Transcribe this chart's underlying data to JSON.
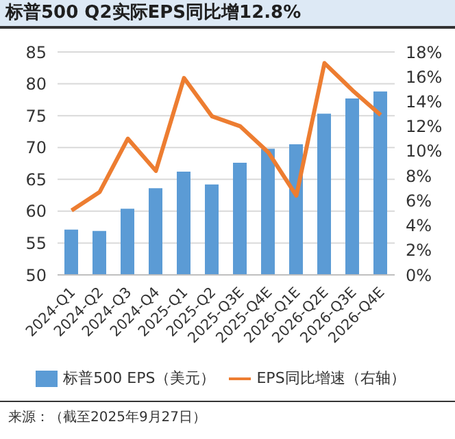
{
  "chart_data": {
    "type": "bar",
    "title": "标普500  Q2实际EPS同比增12.8%",
    "categories": [
      "2024-Q1",
      "2024-Q2",
      "2024-Q3",
      "2024-Q4",
      "2025-Q1",
      "2025-Q2",
      "2025-Q3E",
      "2025-Q4E",
      "2026-Q1E",
      "2026-Q2E",
      "2026-Q3E",
      "2026-Q4E"
    ],
    "series": [
      {
        "name": "标普500 EPS（美元）",
        "color": "#5b9bd5",
        "values": [
          57.1,
          56.9,
          60.4,
          63.6,
          66.2,
          64.2,
          67.6,
          69.8,
          70.5,
          75.3,
          77.7,
          78.8
        ]
      },
      {
        "name": "EPS同比增速（右轴）",
        "type": "line",
        "axis": "y2",
        "color": "#ed7d31",
        "values": [
          5.2,
          6.7,
          11.0,
          8.4,
          15.9,
          12.8,
          12.0,
          9.9,
          6.4,
          17.1,
          14.9,
          12.9
        ]
      }
    ],
    "ylim": [
      50,
      85
    ],
    "yticks": [
      50,
      55,
      60,
      65,
      70,
      75,
      80,
      85
    ],
    "y2lim": [
      0,
      18
    ],
    "y2ticks": [
      {
        "value": 0,
        "label": "0%"
      },
      {
        "value": 2,
        "label": "2%"
      },
      {
        "value": 4,
        "label": "4%"
      },
      {
        "value": 6,
        "label": "6%"
      },
      {
        "value": 8,
        "label": "8%"
      },
      {
        "value": 10,
        "label": "10%"
      },
      {
        "value": 12,
        "label": "12%"
      },
      {
        "value": 14,
        "label": "14%"
      },
      {
        "value": 16,
        "label": "16%"
      },
      {
        "value": 18,
        "label": "18%"
      }
    ],
    "grid": "y",
    "legend": "bottom",
    "marker": "none",
    "line_style": "solid",
    "annotations": [
      "来源：（截至2025年9月27日）"
    ]
  }
}
